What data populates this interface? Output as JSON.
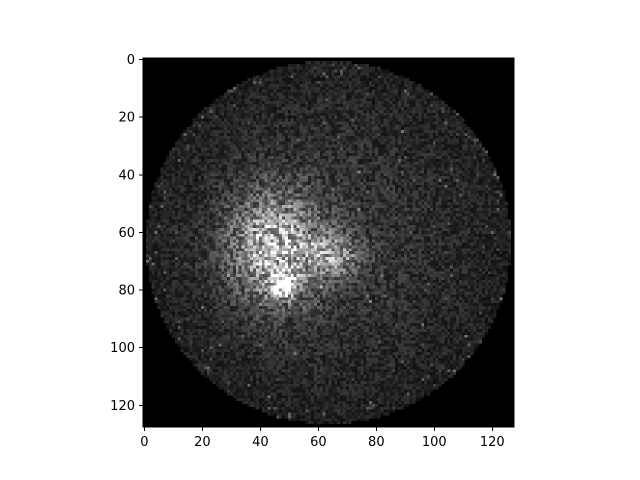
{
  "chart_data": {
    "type": "heatmap",
    "title": "",
    "xlabel": "",
    "ylabel": "",
    "image_size": [
      128,
      128
    ],
    "xlim": [
      -0.5,
      127.5
    ],
    "ylim": [
      127.5,
      -0.5
    ],
    "y_inverted": true,
    "x_ticks": [
      0,
      20,
      40,
      60,
      80,
      100,
      120
    ],
    "y_ticks": [
      0,
      20,
      40,
      60,
      80,
      100,
      120
    ],
    "colormap": "gray",
    "grid": false,
    "legend": "none",
    "background_value": 0,
    "disk": {
      "center_x": 63.5,
      "center_y": 63.5,
      "radius": 63
    },
    "bright_regions": [
      {
        "x": 45,
        "y": 65,
        "sx": 11,
        "sy": 13,
        "peak": 0.55
      },
      {
        "x": 48,
        "y": 78,
        "sx": 3,
        "sy": 3,
        "peak": 0.9
      },
      {
        "x": 66,
        "y": 68,
        "sx": 6,
        "sy": 5,
        "peak": 0.35
      },
      {
        "x": 63,
        "y": 63,
        "sx": 45,
        "sy": 45,
        "peak": 0.14
      }
    ],
    "colors": {
      "axes_background": "#000000",
      "axis_line": "#000000",
      "tick_label": "#000000"
    }
  }
}
